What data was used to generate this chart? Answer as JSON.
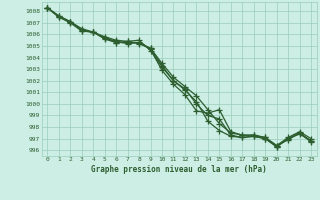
{
  "title": "Graphe pression niveau de la mer (hPa)",
  "background_color": "#cceee4",
  "grid_color": "#99ccbb",
  "line_color": "#2d5e30",
  "text_color": "#2d5e30",
  "xlim": [
    -0.5,
    23.5
  ],
  "ylim": [
    995.5,
    1008.8
  ],
  "yticks": [
    996,
    997,
    998,
    999,
    1000,
    1001,
    1002,
    1003,
    1004,
    1005,
    1006,
    1007,
    1008
  ],
  "xticks": [
    0,
    1,
    2,
    3,
    4,
    5,
    6,
    7,
    8,
    9,
    10,
    11,
    12,
    13,
    14,
    15,
    16,
    17,
    18,
    19,
    20,
    21,
    22,
    23
  ],
  "series": [
    [
      1008.3,
      1007.6,
      1007.1,
      1006.5,
      1006.2,
      1005.8,
      1005.5,
      1005.4,
      1005.5,
      1004.6,
      1003.2,
      1002.0,
      1001.2,
      1000.2,
      998.5,
      997.7,
      997.2,
      997.1,
      997.2,
      997.0,
      996.3,
      997.0,
      997.4,
      996.8
    ],
    [
      1008.3,
      1007.6,
      1007.1,
      1006.4,
      1006.2,
      1005.7,
      1005.3,
      1005.4,
      1005.2,
      1004.8,
      1003.5,
      1002.3,
      1001.5,
      1000.7,
      999.5,
      998.3,
      997.5,
      997.3,
      997.3,
      997.1,
      996.4,
      997.1,
      997.6,
      997.0
    ],
    [
      1008.3,
      1007.5,
      1007.1,
      1006.3,
      1006.2,
      1005.6,
      1005.3,
      1005.3,
      1005.3,
      1004.7,
      1002.9,
      1001.7,
      1000.8,
      999.4,
      999.2,
      999.5,
      997.6,
      997.3,
      997.3,
      997.1,
      996.4,
      996.9,
      997.5,
      996.8
    ],
    [
      1008.3,
      1007.5,
      1007.0,
      1006.3,
      1006.2,
      1005.7,
      1005.4,
      1005.2,
      1005.3,
      1004.8,
      1003.3,
      1002.0,
      1001.3,
      1000.0,
      999.0,
      998.7,
      997.3,
      997.1,
      997.2,
      997.0,
      996.3,
      997.0,
      997.5,
      996.7
    ]
  ],
  "marker": "+",
  "markersize": 4,
  "linewidth": 0.9,
  "tick_fontsize": 4.5,
  "title_fontsize": 5.5
}
